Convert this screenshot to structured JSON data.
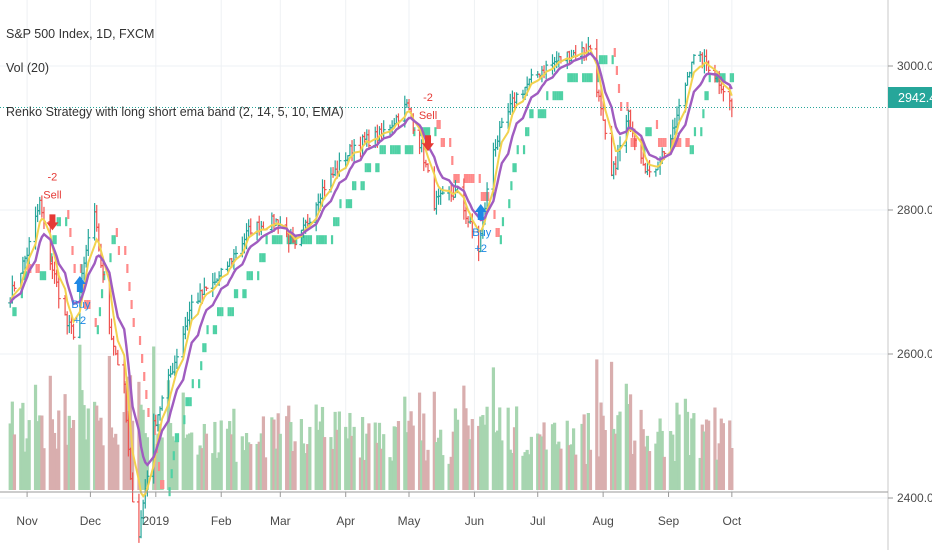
{
  "legend": {
    "title": "S&P 500 Index, 1D, FXCM",
    "volume": "Vol (20)",
    "strategy": "Renko Strategy with long short ema band (2, 14, 5, 10, EMA)"
  },
  "colors": {
    "up": "#26a69a",
    "down": "#ef5350",
    "ema_fast": "#f2d24f",
    "ema_slow": "#a05cc0",
    "renko_up": "#4fd1a5",
    "renko_down": "#ff8a8a",
    "last_price_bg": "#26a69a",
    "volume_up": "#a7d5b0",
    "volume_down": "#d9aeae"
  },
  "chart_data": {
    "type": "line",
    "symbol": "S&P 500 Index",
    "interval": "1D",
    "source": "FXCM",
    "y_ticks": [
      "3000.0",
      "2800.0",
      "2600.0",
      "2400.0"
    ],
    "last_price": "2942.4",
    "x_ticks": [
      "Nov",
      "Dec",
      "2019",
      "Feb",
      "Mar",
      "Apr",
      "May",
      "Jun",
      "Jul",
      "Aug",
      "Sep",
      "Oct"
    ],
    "price_series": [
      {
        "date": "2018-10-24",
        "close": 2680
      },
      {
        "date": "2018-11-01",
        "close": 2740
      },
      {
        "date": "2018-11-07",
        "close": 2810
      },
      {
        "date": "2018-11-12",
        "close": 2730
      },
      {
        "date": "2018-11-20",
        "close": 2640
      },
      {
        "date": "2018-11-23",
        "close": 2630
      },
      {
        "date": "2018-11-30",
        "close": 2760
      },
      {
        "date": "2018-12-03",
        "close": 2790
      },
      {
        "date": "2018-12-10",
        "close": 2640
      },
      {
        "date": "2018-12-17",
        "close": 2550
      },
      {
        "date": "2018-12-20",
        "close": 2420
      },
      {
        "date": "2018-12-24",
        "close": 2350
      },
      {
        "date": "2018-12-31",
        "close": 2500
      },
      {
        "date": "2019-01-10",
        "close": 2590
      },
      {
        "date": "2019-01-18",
        "close": 2670
      },
      {
        "date": "2019-01-31",
        "close": 2705
      },
      {
        "date": "2019-02-15",
        "close": 2775
      },
      {
        "date": "2019-02-28",
        "close": 2785
      },
      {
        "date": "2019-03-08",
        "close": 2745
      },
      {
        "date": "2019-03-20",
        "close": 2825
      },
      {
        "date": "2019-04-05",
        "close": 2890
      },
      {
        "date": "2019-04-18",
        "close": 2905
      },
      {
        "date": "2019-04-30",
        "close": 2945
      },
      {
        "date": "2019-05-07",
        "close": 2885
      },
      {
        "date": "2019-05-13",
        "close": 2810
      },
      {
        "date": "2019-05-24",
        "close": 2825
      },
      {
        "date": "2019-06-03",
        "close": 2745
      },
      {
        "date": "2019-06-10",
        "close": 2885
      },
      {
        "date": "2019-06-20",
        "close": 2955
      },
      {
        "date": "2019-07-03",
        "close": 2995
      },
      {
        "date": "2019-07-15",
        "close": 3015
      },
      {
        "date": "2019-07-26",
        "close": 3025
      },
      {
        "date": "2019-08-05",
        "close": 2845
      },
      {
        "date": "2019-08-13",
        "close": 2930
      },
      {
        "date": "2019-08-23",
        "close": 2845
      },
      {
        "date": "2019-09-03",
        "close": 2905
      },
      {
        "date": "2019-09-12",
        "close": 3010
      },
      {
        "date": "2019-09-19",
        "close": 3005
      },
      {
        "date": "2019-09-26",
        "close": 2975
      },
      {
        "date": "2019-10-01",
        "close": 2942.4
      }
    ],
    "signals": [
      {
        "date": "2018-11-13",
        "price": 2780,
        "type": "sell",
        "label": "Sell",
        "amount": "-2"
      },
      {
        "date": "2018-11-26",
        "price": 2700,
        "type": "buy",
        "label": "Buy",
        "amount": "+2"
      },
      {
        "date": "2019-05-10",
        "price": 2890,
        "type": "sell",
        "label": "Sell",
        "amount": "-2"
      },
      {
        "date": "2019-06-04",
        "price": 2800,
        "type": "buy",
        "label": "Buy",
        "amount": "+2"
      }
    ]
  }
}
